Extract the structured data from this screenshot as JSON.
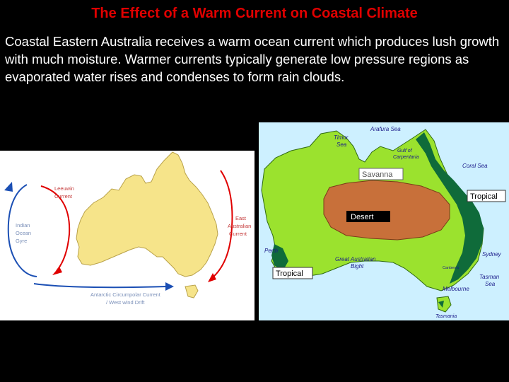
{
  "slide": {
    "title": "The Effect of a Warm Current on Coastal Climate",
    "body": "Coastal Eastern Australia receives a warm ocean current which produces lush growth with much moisture.  Warmer currents typically generate low pressure regions as evaporated water rises and condenses to form rain clouds."
  },
  "currents_map": {
    "leeuwin_line1": "Leeuwin",
    "leeuwin_line2": "Current",
    "indian_line1": "Indian",
    "indian_line2": "Ocean",
    "indian_line3": "Gyre",
    "east_line1": "East",
    "east_line2": "Australian",
    "east_line3": "Current",
    "acc_line1": "Antarctic Circumpolar Current",
    "acc_line2": "/ West wind Drift",
    "colors": {
      "land": "#f6e48a",
      "arrow": "#e00000",
      "gyre": "#1b4fb4",
      "label": "#c43a3a"
    }
  },
  "regions_map": {
    "arafura_sea": "Arafura Sea",
    "timor_line1": "Timor",
    "timor_line2": "Sea",
    "gulf_line1": "Gulf of",
    "gulf_line2": "Carpentaria",
    "coral_sea": "Coral Sea",
    "savanna": "Savanna",
    "tropical_east": "Tropical",
    "desert": "Desert",
    "perth": "Perth",
    "sydney": "Sydney",
    "bight_line1": "Great Australian",
    "bight_line2": "Bight",
    "tropical_south": "Tropical",
    "canberra": "Canberra",
    "tasman_line1": "Tasman",
    "tasman_line2": "Sea",
    "melbourne": "Melbourne",
    "tasmania": "Tasmania",
    "colors": {
      "ocean": "#cdf0ff",
      "savanna": "#9be22e",
      "desert": "#c8703a",
      "forest": "#0f6b3a"
    }
  }
}
